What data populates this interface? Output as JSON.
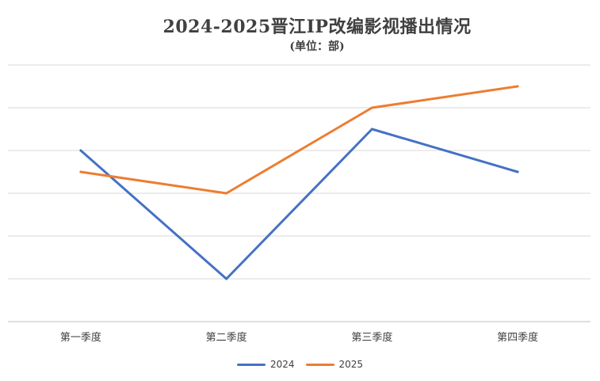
{
  "chart_data": {
    "type": "line",
    "title": "2024-2025晋江IP改编影视播出情况",
    "subtitle": "(单位：部)",
    "categories": [
      "第一季度",
      "第二季度",
      "第三季度",
      "第四季度"
    ],
    "series": [
      {
        "name": "2024",
        "color": "#4472C4",
        "values": [
          4,
          1,
          4.5,
          3.5
        ]
      },
      {
        "name": "2025",
        "color": "#ED7D31",
        "values": [
          3.5,
          3,
          5,
          5.5
        ]
      }
    ],
    "ylim": [
      0,
      6
    ],
    "grid": true,
    "legend": "bottom"
  }
}
